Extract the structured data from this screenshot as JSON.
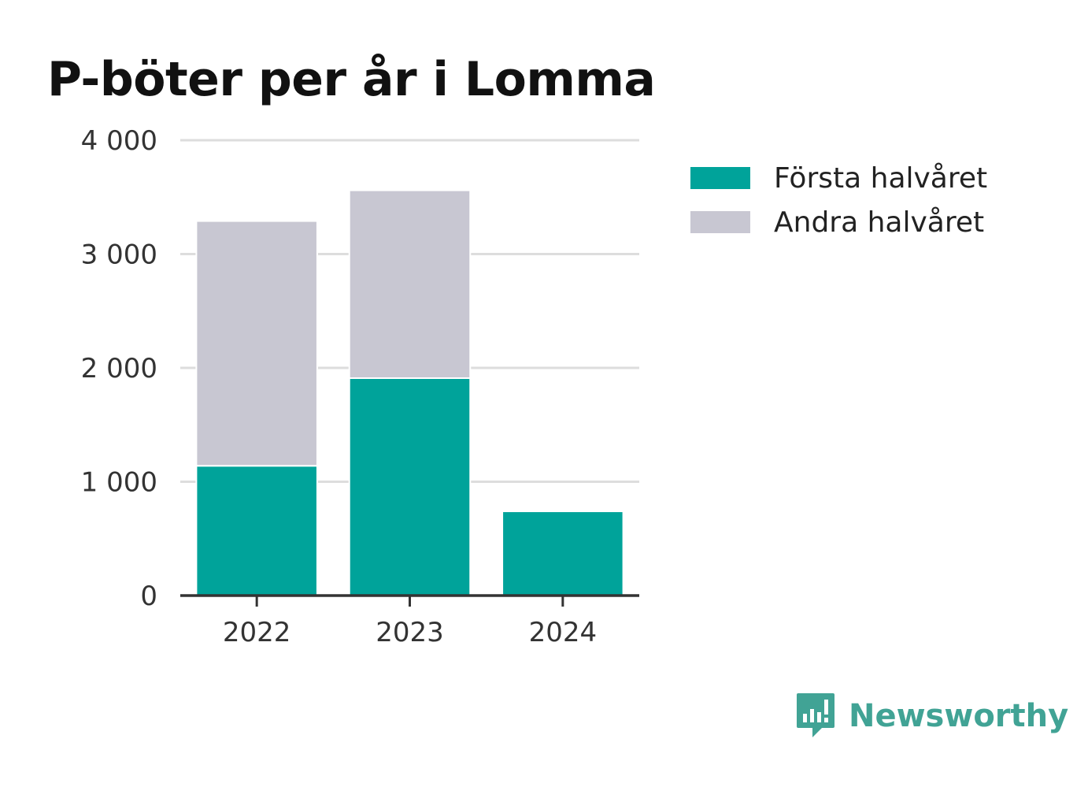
{
  "title": "P-böter per år i Lomma",
  "colors": {
    "forsta": "#00a39a",
    "andra": "#c8c7d2",
    "grid": "#dddddd",
    "axis": "#333333",
    "brand": "#41a395"
  },
  "chart_data": {
    "type": "bar",
    "stacked": true,
    "title": "P-böter per år i Lomma",
    "xlabel": "",
    "ylabel": "",
    "categories": [
      "2022",
      "2023",
      "2024"
    ],
    "series": [
      {
        "name": "Första halvåret",
        "values": [
          1140,
          1910,
          740
        ]
      },
      {
        "name": "Andra halvåret",
        "values": [
          2150,
          1650,
          0
        ]
      }
    ],
    "ylim": [
      0,
      4000
    ],
    "yticks": [
      0,
      1000,
      2000,
      3000,
      4000
    ],
    "ytick_labels": [
      "0",
      "1 000",
      "2 000",
      "3 000",
      "4 000"
    ],
    "grid": true,
    "legend_position": "right"
  },
  "legend": {
    "items": [
      {
        "label": "Första halvåret",
        "color": "#00a39a"
      },
      {
        "label": "Andra halvåret",
        "color": "#c8c7d2"
      }
    ]
  },
  "brand": {
    "name": "Newsworthy",
    "logo_icon": "newsworthy-logo-icon"
  }
}
